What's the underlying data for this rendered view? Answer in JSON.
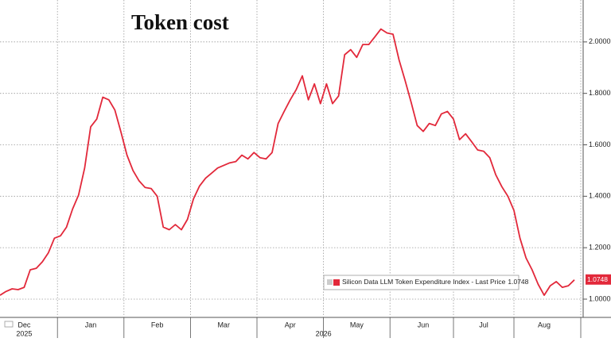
{
  "chart_data": {
    "type": "line",
    "title": "Token cost",
    "legend": "Silicon Data LLM Token Expenditure Index - Last Price",
    "color": "#e2283a",
    "categories": [
      null,
      null,
      null,
      null,
      "Dec",
      null,
      null,
      null,
      null,
      null,
      null,
      null,
      null,
      null,
      null,
      "Jan",
      null,
      null,
      null,
      null,
      null,
      null,
      null,
      null,
      null,
      null,
      "Feb",
      null,
      null,
      null,
      null,
      null,
      null,
      null,
      null,
      null,
      null,
      "Mar",
      null,
      null,
      null,
      null,
      null,
      null,
      null,
      null,
      null,
      null,
      "Apr",
      null,
      null,
      null,
      null,
      null,
      null,
      null,
      null,
      null,
      null,
      "May",
      null,
      null,
      null,
      null,
      null,
      null,
      null,
      null,
      null,
      null,
      "Jun",
      null,
      null,
      null,
      null,
      null,
      null,
      null,
      null,
      null,
      "Jul",
      null,
      null,
      null,
      null,
      null,
      null,
      null,
      null,
      null,
      "Aug",
      null,
      null,
      null,
      null,
      null
    ],
    "years": [
      "2025",
      "2026"
    ],
    "values": [
      1.015,
      1.03,
      1.04,
      1.037,
      1.046,
      1.114,
      1.12,
      1.145,
      1.18,
      1.237,
      1.246,
      1.28,
      1.35,
      1.405,
      1.51,
      1.67,
      1.7,
      1.785,
      1.775,
      1.735,
      1.65,
      1.56,
      1.5,
      1.46,
      1.434,
      1.43,
      1.4,
      1.28,
      1.27,
      1.29,
      1.27,
      1.31,
      1.39,
      1.44,
      1.47,
      1.49,
      1.51,
      1.52,
      1.53,
      1.535,
      1.56,
      1.545,
      1.57,
      1.55,
      1.545,
      1.57,
      1.683,
      1.73,
      1.775,
      1.815,
      1.868,
      1.775,
      1.837,
      1.76,
      1.837,
      1.76,
      1.79,
      1.95,
      1.97,
      1.94,
      1.99,
      1.99,
      2.02,
      2.05,
      2.035,
      2.03,
      1.93,
      1.85,
      1.765,
      1.675,
      1.652,
      1.683,
      1.675,
      1.72,
      1.73,
      1.7,
      1.62,
      1.643,
      1.612,
      1.58,
      1.575,
      1.55,
      1.483,
      1.437,
      1.4,
      1.345,
      1.237,
      1.16,
      1.114,
      1.058,
      1.015,
      1.052,
      1.068,
      1.046,
      1.052,
      1.0748
    ],
    "ylim": [
      0.929,
      2.163
    ],
    "yticks": [
      {
        "value": 1.0,
        "label": "1.0000"
      },
      {
        "value": 1.2,
        "label": "1.2000"
      },
      {
        "value": 1.4,
        "label": "1.4000"
      },
      {
        "value": 1.6,
        "label": "1.6000"
      },
      {
        "value": 1.8,
        "label": "1.8000"
      },
      {
        "value": 2.0,
        "label": "2.0000"
      }
    ],
    "grid": true
  }
}
